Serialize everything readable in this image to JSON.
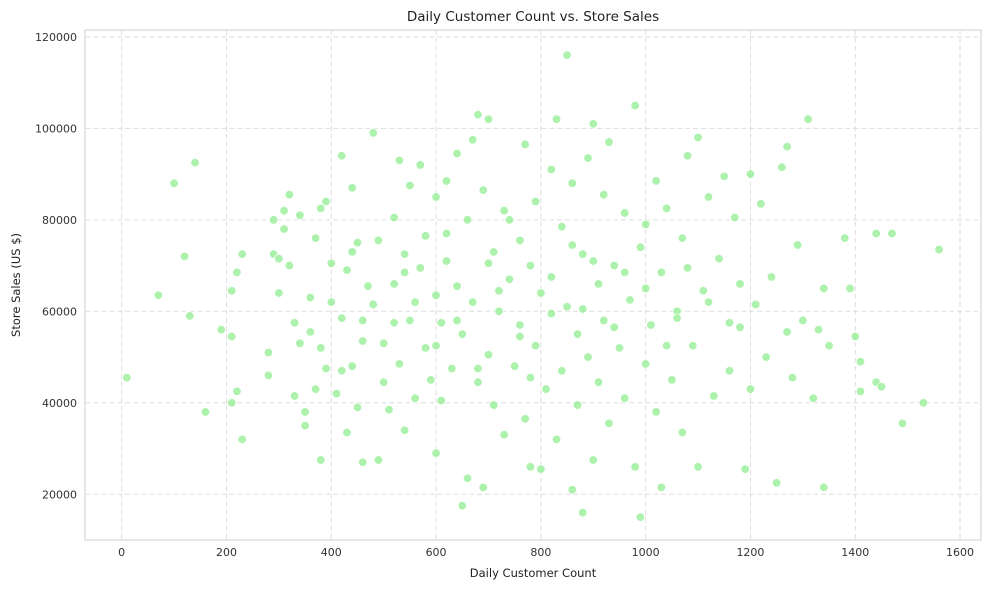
{
  "chart_data": {
    "type": "scatter",
    "title": "Daily Customer Count vs. Store Sales",
    "xlabel": "Daily Customer Count",
    "ylabel": "Store Sales (US $)",
    "xlim": [
      -70,
      1640
    ],
    "ylim": [
      10000,
      121500
    ],
    "xticks": [
      0,
      200,
      400,
      600,
      800,
      1000,
      1200,
      1400,
      1600
    ],
    "yticks": [
      20000,
      40000,
      60000,
      80000,
      100000,
      120000
    ],
    "xtick_labels": [
      "0",
      "200",
      "400",
      "600",
      "800",
      "1000",
      "1200",
      "1400",
      "1600"
    ],
    "ytick_labels": [
      "20000",
      "40000",
      "60000",
      "80000",
      "100000",
      "120000"
    ],
    "grid": true,
    "point_color": "#90ee90",
    "points": [
      [
        10,
        45500
      ],
      [
        70,
        63500
      ],
      [
        100,
        88000
      ],
      [
        140,
        92500
      ],
      [
        120,
        72000
      ],
      [
        130,
        59000
      ],
      [
        160,
        38000
      ],
      [
        190,
        56000
      ],
      [
        210,
        40000
      ],
      [
        210,
        54500
      ],
      [
        210,
        64500
      ],
      [
        220,
        68500
      ],
      [
        220,
        42500
      ],
      [
        230,
        72500
      ],
      [
        230,
        32000
      ],
      [
        280,
        51000
      ],
      [
        280,
        46000
      ],
      [
        290,
        80000
      ],
      [
        290,
        72500
      ],
      [
        300,
        64000
      ],
      [
        300,
        71500
      ],
      [
        310,
        78000
      ],
      [
        310,
        82000
      ],
      [
        320,
        85500
      ],
      [
        320,
        70000
      ],
      [
        330,
        57500
      ],
      [
        330,
        41500
      ],
      [
        340,
        81000
      ],
      [
        340,
        53000
      ],
      [
        350,
        38000
      ],
      [
        350,
        35000
      ],
      [
        360,
        63000
      ],
      [
        360,
        55500
      ],
      [
        370,
        76000
      ],
      [
        370,
        43000
      ],
      [
        380,
        82500
      ],
      [
        380,
        27500
      ],
      [
        390,
        84000
      ],
      [
        390,
        47500
      ],
      [
        400,
        62000
      ],
      [
        400,
        70500
      ],
      [
        410,
        42000
      ],
      [
        420,
        94000
      ],
      [
        420,
        58500
      ],
      [
        430,
        69000
      ],
      [
        430,
        33500
      ],
      [
        440,
        87000
      ],
      [
        440,
        48000
      ],
      [
        450,
        75000
      ],
      [
        450,
        39000
      ],
      [
        460,
        27000
      ],
      [
        460,
        53500
      ],
      [
        470,
        65500
      ],
      [
        480,
        99000
      ],
      [
        480,
        61500
      ],
      [
        490,
        75500
      ],
      [
        490,
        27500
      ],
      [
        500,
        53000
      ],
      [
        500,
        44500
      ],
      [
        510,
        38500
      ],
      [
        520,
        80500
      ],
      [
        520,
        66000
      ],
      [
        530,
        93000
      ],
      [
        530,
        48500
      ],
      [
        540,
        72500
      ],
      [
        540,
        34000
      ],
      [
        550,
        87500
      ],
      [
        550,
        58000
      ],
      [
        560,
        41000
      ],
      [
        570,
        69500
      ],
      [
        570,
        92000
      ],
      [
        580,
        76500
      ],
      [
        580,
        52000
      ],
      [
        590,
        45000
      ],
      [
        600,
        85000
      ],
      [
        600,
        63500
      ],
      [
        600,
        29000
      ],
      [
        610,
        57500
      ],
      [
        610,
        40500
      ],
      [
        620,
        88500
      ],
      [
        620,
        71000
      ],
      [
        630,
        47500
      ],
      [
        640,
        94500
      ],
      [
        640,
        65500
      ],
      [
        650,
        17500
      ],
      [
        650,
        55000
      ],
      [
        660,
        23500
      ],
      [
        660,
        80000
      ],
      [
        670,
        97500
      ],
      [
        670,
        62000
      ],
      [
        680,
        103000
      ],
      [
        680,
        44500
      ],
      [
        690,
        21500
      ],
      [
        690,
        86500
      ],
      [
        700,
        102000
      ],
      [
        700,
        50500
      ],
      [
        710,
        73000
      ],
      [
        710,
        39500
      ],
      [
        720,
        60000
      ],
      [
        730,
        82000
      ],
      [
        730,
        33000
      ],
      [
        740,
        67000
      ],
      [
        750,
        48000
      ],
      [
        760,
        75500
      ],
      [
        760,
        57000
      ],
      [
        770,
        96500
      ],
      [
        770,
        36500
      ],
      [
        780,
        26000
      ],
      [
        780,
        70000
      ],
      [
        790,
        84000
      ],
      [
        790,
        52500
      ],
      [
        800,
        25500
      ],
      [
        800,
        64000
      ],
      [
        810,
        43000
      ],
      [
        820,
        91000
      ],
      [
        820,
        59500
      ],
      [
        830,
        102000
      ],
      [
        830,
        32000
      ],
      [
        840,
        78500
      ],
      [
        840,
        47000
      ],
      [
        850,
        116000
      ],
      [
        850,
        61000
      ],
      [
        860,
        21000
      ],
      [
        860,
        88000
      ],
      [
        870,
        55000
      ],
      [
        870,
        39500
      ],
      [
        880,
        16000
      ],
      [
        880,
        72500
      ],
      [
        890,
        93500
      ],
      [
        890,
        50000
      ],
      [
        900,
        101000
      ],
      [
        900,
        27500
      ],
      [
        910,
        66000
      ],
      [
        910,
        44500
      ],
      [
        920,
        85500
      ],
      [
        920,
        58000
      ],
      [
        930,
        35500
      ],
      [
        930,
        97000
      ],
      [
        940,
        70000
      ],
      [
        950,
        52000
      ],
      [
        960,
        81500
      ],
      [
        960,
        41000
      ],
      [
        970,
        62500
      ],
      [
        980,
        105000
      ],
      [
        980,
        26000
      ],
      [
        990,
        15000
      ],
      [
        990,
        74000
      ],
      [
        1000,
        48500
      ],
      [
        1010,
        57000
      ],
      [
        1020,
        88500
      ],
      [
        1020,
        38000
      ],
      [
        1030,
        21500
      ],
      [
        1030,
        68500
      ],
      [
        1040,
        82500
      ],
      [
        1050,
        45000
      ],
      [
        1060,
        60000
      ],
      [
        1070,
        76000
      ],
      [
        1070,
        33500
      ],
      [
        1080,
        94000
      ],
      [
        1090,
        52500
      ],
      [
        1100,
        98000
      ],
      [
        1100,
        26000
      ],
      [
        1110,
        64500
      ],
      [
        1120,
        85000
      ],
      [
        1130,
        41500
      ],
      [
        1140,
        71500
      ],
      [
        1150,
        89500
      ],
      [
        1160,
        47000
      ],
      [
        1170,
        80500
      ],
      [
        1180,
        56500
      ],
      [
        1190,
        25500
      ],
      [
        1200,
        90000
      ],
      [
        1200,
        43000
      ],
      [
        1210,
        61500
      ],
      [
        1220,
        83500
      ],
      [
        1230,
        50000
      ],
      [
        1240,
        67500
      ],
      [
        1250,
        22500
      ],
      [
        1260,
        91500
      ],
      [
        1270,
        96000
      ],
      [
        1270,
        55500
      ],
      [
        1280,
        45500
      ],
      [
        1290,
        74500
      ],
      [
        1300,
        58000
      ],
      [
        1310,
        102000
      ],
      [
        1320,
        41000
      ],
      [
        1330,
        56000
      ],
      [
        1340,
        21500
      ],
      [
        1340,
        65000
      ],
      [
        1350,
        52500
      ],
      [
        1380,
        76000
      ],
      [
        1390,
        65000
      ],
      [
        1400,
        54500
      ],
      [
        1410,
        49000
      ],
      [
        1410,
        42500
      ],
      [
        1440,
        44500
      ],
      [
        1440,
        77000
      ],
      [
        1450,
        43500
      ],
      [
        1470,
        77000
      ],
      [
        1490,
        35500
      ],
      [
        1530,
        40000
      ],
      [
        1560,
        73500
      ],
      [
        720,
        64500
      ],
      [
        640,
        58000
      ],
      [
        560,
        62000
      ],
      [
        880,
        60500
      ],
      [
        940,
        56500
      ],
      [
        1000,
        65000
      ],
      [
        760,
        54500
      ],
      [
        820,
        67500
      ],
      [
        700,
        70500
      ],
      [
        600,
        52500
      ],
      [
        520,
        57500
      ],
      [
        1060,
        58500
      ],
      [
        1120,
        62000
      ],
      [
        460,
        58000
      ],
      [
        680,
        47500
      ],
      [
        780,
        45500
      ],
      [
        860,
        74500
      ],
      [
        960,
        68500
      ],
      [
        1040,
        52500
      ],
      [
        1160,
        57500
      ],
      [
        540,
        68500
      ],
      [
        620,
        77000
      ],
      [
        740,
        80000
      ],
      [
        900,
        71000
      ],
      [
        1000,
        79000
      ],
      [
        1080,
        69500
      ],
      [
        1180,
        66000
      ],
      [
        420,
        47000
      ],
      [
        380,
        52000
      ],
      [
        440,
        73000
      ]
    ]
  }
}
